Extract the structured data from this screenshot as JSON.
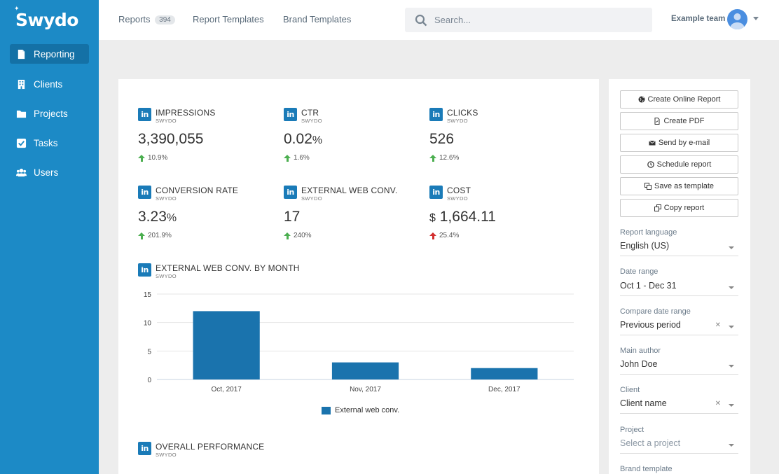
{
  "app": {
    "logo": "Swydo"
  },
  "sidebar": {
    "items": [
      {
        "label": "Reporting",
        "icon": "document-icon",
        "active": true
      },
      {
        "label": "Clients",
        "icon": "building-icon",
        "active": false
      },
      {
        "label": "Projects",
        "icon": "folder-icon",
        "active": false
      },
      {
        "label": "Tasks",
        "icon": "checkbox-icon",
        "active": false
      },
      {
        "label": "Users",
        "icon": "users-icon",
        "active": false
      }
    ]
  },
  "topbar": {
    "links": [
      {
        "label": "Reports",
        "badge": "394"
      },
      {
        "label": "Report Templates"
      },
      {
        "label": "Brand Templates"
      }
    ],
    "search_placeholder": "Search...",
    "team_name": "Example team"
  },
  "metrics": [
    {
      "title": "IMPRESSIONS",
      "source": "SWYDO",
      "value": "3,390,055",
      "prefix": "",
      "unit": "",
      "change": "10.9%",
      "direction": "up",
      "color": "#4caf50"
    },
    {
      "title": "CTR",
      "source": "SWYDO",
      "value": "0.02",
      "prefix": "",
      "unit": "%",
      "change": "1.6%",
      "direction": "up",
      "color": "#4caf50"
    },
    {
      "title": "CLICKS",
      "source": "SWYDO",
      "value": "526",
      "prefix": "",
      "unit": "",
      "change": "12.6%",
      "direction": "up",
      "color": "#4caf50"
    },
    {
      "title": "CONVERSION RATE",
      "source": "SWYDO",
      "value": "3.23",
      "prefix": "",
      "unit": "%",
      "change": "201.9%",
      "direction": "up",
      "color": "#4caf50"
    },
    {
      "title": "EXTERNAL WEB CONV.",
      "source": "SWYDO",
      "value": "17",
      "prefix": "",
      "unit": "",
      "change": "240%",
      "direction": "up",
      "color": "#4caf50"
    },
    {
      "title": "COST",
      "source": "SWYDO",
      "value": "1,664.11",
      "prefix": "$",
      "unit": "",
      "change": "25.4%",
      "direction": "up",
      "color": "#d32f2f"
    }
  ],
  "chart_section": {
    "title": "EXTERNAL WEB CONV. BY MONTH",
    "source": "SWYDO"
  },
  "chart_data": {
    "type": "bar",
    "categories": [
      "Oct, 2017",
      "Nov, 2017",
      "Dec, 2017"
    ],
    "series": [
      {
        "name": "External web conv.",
        "values": [
          12,
          3,
          2
        ]
      }
    ],
    "ylim": [
      0,
      15
    ],
    "yticks": [
      0,
      5,
      10,
      15
    ],
    "title": "",
    "xlabel": "",
    "ylabel": "",
    "grid": true,
    "legend": "bottom",
    "bar_color": "#1a73ad"
  },
  "overall_section": {
    "title": "OVERALL PERFORMANCE",
    "source": "SWYDO"
  },
  "panel": {
    "actions": [
      {
        "label": "Create Online Report",
        "icon": "globe-icon"
      },
      {
        "label": "Create PDF",
        "icon": "pdf-icon"
      },
      {
        "label": "Send by e-mail",
        "icon": "envelope-icon"
      },
      {
        "label": "Schedule report",
        "icon": "clock-icon"
      },
      {
        "label": "Save as template",
        "icon": "copy-icon"
      },
      {
        "label": "Copy report",
        "icon": "duplicate-icon"
      }
    ],
    "fields": [
      {
        "label": "Report language",
        "value": "English (US)",
        "placeholder": false,
        "clearable": false
      },
      {
        "label": "Date range",
        "value": "Oct 1 - Dec 31",
        "placeholder": false,
        "clearable": false
      },
      {
        "label": "Compare date range",
        "value": "Previous period",
        "placeholder": false,
        "clearable": true
      },
      {
        "label": "Main author",
        "value": "John Doe",
        "placeholder": false,
        "clearable": false
      },
      {
        "label": "Client",
        "value": "Client name",
        "placeholder": false,
        "clearable": true
      },
      {
        "label": "Project",
        "value": "Select a project",
        "placeholder": true,
        "clearable": false
      }
    ],
    "brand_template_label": "Brand template"
  },
  "colors": {
    "sidebar": "#1c8ac6",
    "sidebar_active": "#1471a6",
    "linkedin": "#1a7bb8",
    "up": "#4caf50",
    "down": "#d32f2f"
  }
}
